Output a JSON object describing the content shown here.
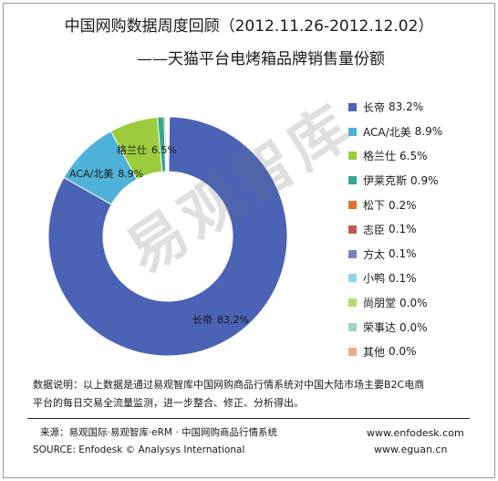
{
  "title_line1": "中国网购数据周度回顾（2012.11.26-2012.12.02）",
  "title_line2": "——天猫平台电烤箱品牌销售量份额",
  "watermark": "易观智库",
  "chart_data": {
    "type": "pie",
    "donut": true,
    "categories": [
      "长帝",
      "ACA/北美",
      "格兰仕",
      "伊莱克斯",
      "松下",
      "志臣",
      "方太",
      "小鸭",
      "尚朋堂",
      "荣事达",
      "其他"
    ],
    "values": [
      83.2,
      8.9,
      6.5,
      0.9,
      0.2,
      0.1,
      0.1,
      0.1,
      0.0,
      0.0,
      0.0
    ],
    "labels": [
      "83.2%",
      "8.9%",
      "6.5%",
      "0.9%",
      "0.2%",
      "0.1%",
      "0.1%",
      "0.1%",
      "0.0%",
      "0.0%",
      "0.0%"
    ],
    "colors": [
      "#4a63b5",
      "#4fb2d8",
      "#9ccc3d",
      "#35a890",
      "#e0742c",
      "#c05a55",
      "#7b7fc2",
      "#8fd3ef",
      "#b3dc68",
      "#9fd6c2",
      "#f2a98b"
    ],
    "legend_position": "right",
    "slice_labels_shown": [
      0,
      1,
      2
    ]
  },
  "note": {
    "line1": "数据说明：以上数据是通过易观智库中国网购商品行情系统对中国大陆市场主要B2C电商",
    "line2": "平台的每日交易全流量监测，进一步整合、修正、分析得出。"
  },
  "source": {
    "line1": "来源：易观国际·易观智库·eRM · 中国网购商品行情系统",
    "line2": "SOURCE: Enfodesk © Analysys International",
    "url1": "www.enfodesk.com",
    "url2": "www.eguan.cn"
  }
}
